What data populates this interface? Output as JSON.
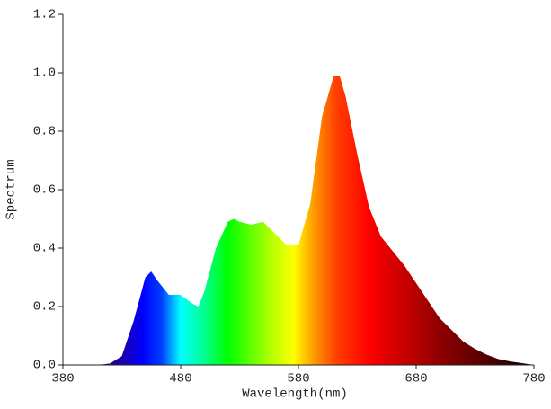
{
  "chart_data": {
    "type": "area",
    "x_label": "Wavelength(nm)",
    "y_label": "Spectrum",
    "x": [
      380,
      390,
      400,
      410,
      420,
      430,
      440,
      450,
      455,
      460,
      470,
      480,
      490,
      495,
      500,
      510,
      520,
      525,
      530,
      540,
      550,
      560,
      570,
      580,
      590,
      600,
      610,
      615,
      620,
      630,
      640,
      650,
      660,
      670,
      680,
      690,
      700,
      710,
      720,
      730,
      740,
      750,
      760,
      770,
      780
    ],
    "values": [
      0,
      0,
      0,
      0,
      0.005,
      0.03,
      0.15,
      0.3,
      0.32,
      0.29,
      0.24,
      0.24,
      0.21,
      0.2,
      0.25,
      0.4,
      0.49,
      0.5,
      0.49,
      0.48,
      0.49,
      0.45,
      0.41,
      0.41,
      0.55,
      0.85,
      0.99,
      0.99,
      0.92,
      0.72,
      0.54,
      0.44,
      0.39,
      0.34,
      0.28,
      0.22,
      0.16,
      0.12,
      0.08,
      0.055,
      0.035,
      0.02,
      0.012,
      0.006,
      0
    ],
    "xlim": [
      380,
      780
    ],
    "xticks": [
      380,
      480,
      580,
      680,
      780
    ],
    "ylim": [
      0,
      1.2
    ],
    "yticks": [
      {
        "value": 0,
        "label": "0.0"
      },
      0.2,
      0.4,
      0.6,
      0.8,
      {
        "value": 1,
        "label": "1.0"
      },
      1.2
    ]
  }
}
